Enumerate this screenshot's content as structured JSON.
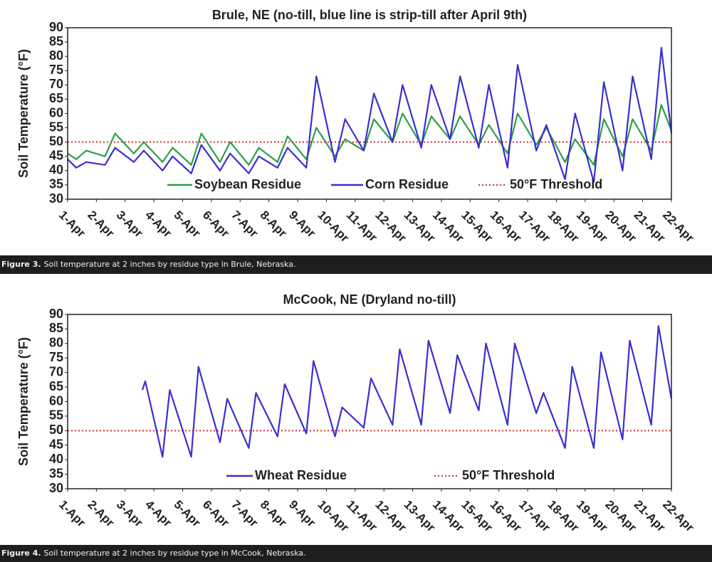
{
  "chart_data": [
    {
      "type": "line",
      "title": "Brule, NE (no-till, blue line is strip-till after April 9th)",
      "y_label": "Soil Temperature (°F)",
      "xlim": [
        1,
        22
      ],
      "xticks": [
        {
          "value": 1,
          "label": "1-Apr"
        },
        {
          "value": 2,
          "label": "2-Apr"
        },
        {
          "value": 3,
          "label": "3-Apr"
        },
        {
          "value": 4,
          "label": "4-Apr"
        },
        {
          "value": 5,
          "label": "5-Apr"
        },
        {
          "value": 6,
          "label": "6-Apr"
        },
        {
          "value": 7,
          "label": "7-Apr"
        },
        {
          "value": 8,
          "label": "8-Apr"
        },
        {
          "value": 9,
          "label": "9-Apr"
        },
        {
          "value": 10,
          "label": "10-Apr"
        },
        {
          "value": 11,
          "label": "11-Apr"
        },
        {
          "value": 12,
          "label": "12-Apr"
        },
        {
          "value": 13,
          "label": "13-Apr"
        },
        {
          "value": 14,
          "label": "14-Apr"
        },
        {
          "value": 15,
          "label": "15-Apr"
        },
        {
          "value": 16,
          "label": "16-Apr"
        },
        {
          "value": 17,
          "label": "17-Apr"
        },
        {
          "value": 18,
          "label": "18-Apr"
        },
        {
          "value": 19,
          "label": "19-Apr"
        },
        {
          "value": 20,
          "label": "20-Apr"
        },
        {
          "value": 21,
          "label": "21-Apr"
        },
        {
          "value": 22,
          "label": "22-Apr"
        }
      ],
      "ylim": [
        30,
        90
      ],
      "yticks": [
        30,
        35,
        40,
        45,
        50,
        55,
        60,
        65,
        70,
        75,
        80,
        85,
        90
      ],
      "x": [
        1,
        1.3,
        1.65,
        2.3,
        2.65,
        3.3,
        3.65,
        4.3,
        4.65,
        5.3,
        5.65,
        6.3,
        6.65,
        7.3,
        7.65,
        8.3,
        8.65,
        9.3,
        9.65,
        10.3,
        10.65,
        11.3,
        11.65,
        12.3,
        12.65,
        13.3,
        13.65,
        14.3,
        14.65,
        15.3,
        15.65,
        16.3,
        16.65,
        17.3,
        17.65,
        18.3,
        18.65,
        19.3,
        19.65,
        20.3,
        20.65,
        21.3,
        21.65,
        22
      ],
      "series": [
        {
          "name": "Soybean Residue",
          "color": "#2e9e48",
          "values": [
            46,
            44,
            47,
            45,
            53,
            46,
            50,
            43,
            48,
            42,
            53,
            43,
            50,
            42,
            48,
            43,
            52,
            44,
            55,
            45,
            51,
            47,
            58,
            50,
            60,
            49,
            59,
            51,
            59,
            49,
            56,
            46,
            60,
            49,
            55,
            43,
            51,
            42,
            58,
            45,
            58,
            47,
            63,
            54
          ]
        },
        {
          "name": "Corn Residue",
          "color": "#3a2fd0",
          "values": [
            44,
            41,
            43,
            42,
            48,
            43,
            47,
            40,
            45,
            39,
            49,
            40,
            46,
            39,
            45,
            41,
            48,
            41,
            73,
            43,
            58,
            47,
            67,
            50,
            70,
            48,
            70,
            51,
            73,
            48,
            70,
            41,
            77,
            47,
            56,
            37,
            60,
            36,
            71,
            40,
            73,
            44,
            83,
            53
          ]
        }
      ],
      "threshold": {
        "name": "50°F Threshold",
        "value": 50,
        "color": "#d03030"
      }
    },
    {
      "type": "line",
      "title": "McCook, NE (Dryland no-till)",
      "y_label": "Soil Temperature (°F)",
      "xlim": [
        1,
        22
      ],
      "xticks": [
        {
          "value": 1,
          "label": "1-Apr"
        },
        {
          "value": 2,
          "label": "2-Apr"
        },
        {
          "value": 3,
          "label": "3-Apr"
        },
        {
          "value": 4,
          "label": "4-Apr"
        },
        {
          "value": 5,
          "label": "5-Apr"
        },
        {
          "value": 6,
          "label": "6-Apr"
        },
        {
          "value": 7,
          "label": "7-Apr"
        },
        {
          "value": 8,
          "label": "8-Apr"
        },
        {
          "value": 9,
          "label": "9-Apr"
        },
        {
          "value": 10,
          "label": "10-Apr"
        },
        {
          "value": 11,
          "label": "11-Apr"
        },
        {
          "value": 12,
          "label": "12-Apr"
        },
        {
          "value": 13,
          "label": "13-Apr"
        },
        {
          "value": 14,
          "label": "14-Apr"
        },
        {
          "value": 15,
          "label": "15-Apr"
        },
        {
          "value": 16,
          "label": "16-Apr"
        },
        {
          "value": 17,
          "label": "17-Apr"
        },
        {
          "value": 18,
          "label": "18-Apr"
        },
        {
          "value": 19,
          "label": "19-Apr"
        },
        {
          "value": 20,
          "label": "20-Apr"
        },
        {
          "value": 21,
          "label": "21-Apr"
        },
        {
          "value": 22,
          "label": "22-Apr"
        }
      ],
      "ylim": [
        30,
        90
      ],
      "yticks": [
        30,
        35,
        40,
        45,
        50,
        55,
        60,
        65,
        70,
        75,
        80,
        85,
        90
      ],
      "x": [
        3.6,
        3.7,
        4.3,
        4.55,
        5.3,
        5.55,
        6.3,
        6.55,
        7.3,
        7.55,
        8.3,
        8.55,
        9.3,
        9.55,
        10.3,
        10.55,
        11.3,
        11.55,
        12.3,
        12.55,
        13.3,
        13.55,
        14.3,
        14.55,
        15.3,
        15.55,
        16.3,
        16.55,
        17.3,
        17.55,
        18.3,
        18.55,
        19.3,
        19.55,
        20.3,
        20.55,
        21.3,
        21.55,
        22
      ],
      "series": [
        {
          "name": "Wheat Residue",
          "color": "#3a2fd0",
          "values": [
            64,
            67,
            41,
            64,
            41,
            72,
            46,
            61,
            44,
            63,
            48,
            66,
            49,
            74,
            48,
            58,
            51,
            68,
            52,
            78,
            52,
            81,
            56,
            76,
            57,
            80,
            52,
            80,
            56,
            63,
            44,
            72,
            44,
            77,
            47,
            81,
            52,
            86,
            61
          ]
        }
      ],
      "threshold": {
        "name": "50°F Threshold",
        "value": 50,
        "color": "#d03030"
      }
    }
  ],
  "captions": [
    {
      "label": "Figure 3.",
      "text": "Soil temperature at 2 inches by residue type in Brule, Nebraska."
    },
    {
      "label": "Figure 4.",
      "text": "Soil temperature at 2 inches by residue type in McCook, Nebraska."
    }
  ]
}
